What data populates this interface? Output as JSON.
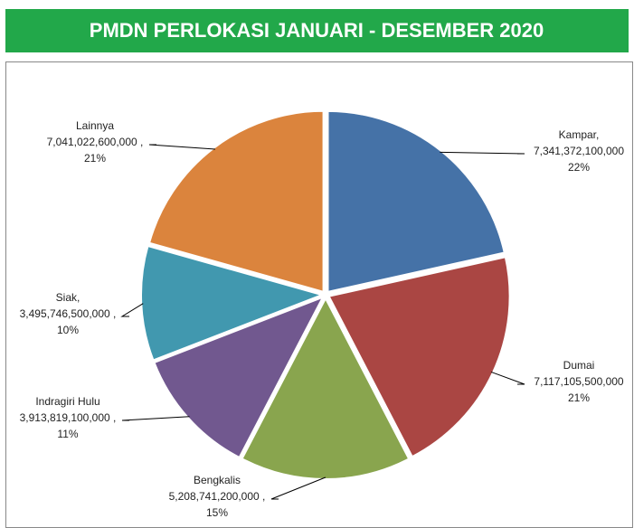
{
  "chart_data": {
    "type": "pie",
    "title": "PMDN  PERLOKASI JANUARI - DESEMBER 2020",
    "categories": [
      "Kampar,",
      "Dumai",
      "Bengkalis",
      "Indragiri Hulu",
      "Siak,",
      "Lainnya"
    ],
    "values": [
      7341372100000,
      7117105500000,
      5208741200000,
      3913819100000,
      3495746500000,
      7041022600000
    ],
    "value_labels": [
      "7,341,372,100,000",
      "7,117,105,500,000",
      "5,208,741,200,000 ,",
      "3,913,819,100,000 ,",
      "3,495,746,500,000 ,",
      "7,041,022,600,000 ,"
    ],
    "percent_labels": [
      "22%",
      "21%",
      "15%",
      "11%",
      "10%",
      "21%"
    ],
    "colors": [
      "#4572a7",
      "#aa4643",
      "#89a54e",
      "#71588f",
      "#4198af",
      "#db843d"
    ]
  }
}
